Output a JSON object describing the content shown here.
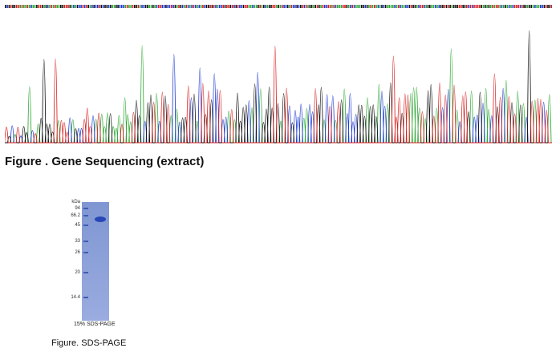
{
  "sequencing": {
    "title": "Figure . Gene Sequencing (extract)",
    "colors": {
      "A": "#2fa836",
      "C": "#1f3ad2",
      "G": "#111111",
      "T": "#d82121"
    }
  },
  "gel": {
    "unit_label": "kDa",
    "markers": [
      "94",
      "66.2",
      "45",
      "33",
      "26",
      "20",
      "14.4"
    ],
    "caption": "15% SDS-PAGE",
    "figure_caption": "Figure. SDS-PAGE"
  }
}
